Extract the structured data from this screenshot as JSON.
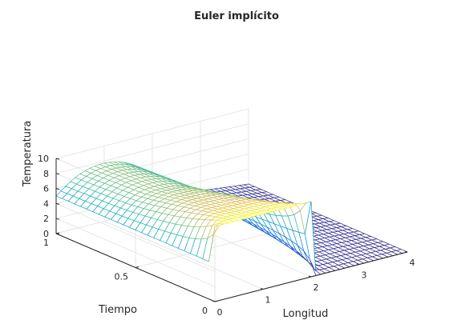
{
  "chart_data": {
    "type": "surface",
    "title": "Euler implícito",
    "xlabel": "Longitud",
    "ylabel": "Tiempo",
    "zlabel": "Temperatura",
    "xlim": [
      0,
      4
    ],
    "ylim": [
      0,
      1
    ],
    "zlim": [
      0,
      10
    ],
    "x_ticks": [
      "0",
      "1",
      "2",
      "3",
      "4"
    ],
    "y_ticks": [
      "0",
      "0.5",
      "1"
    ],
    "z_ticks": [
      "0",
      "2",
      "4",
      "6",
      "8",
      "10"
    ],
    "grid": true,
    "colormap": "parula",
    "initial_condition": {
      "x": [
        0.0,
        0.35,
        0.7,
        1.05,
        1.4,
        1.75,
        2.0,
        2.02,
        2.4,
        2.8,
        3.2,
        3.6,
        4.0
      ],
      "temperature": [
        10,
        10,
        10,
        10,
        10,
        10,
        10,
        0,
        0,
        0,
        0,
        0,
        0
      ]
    },
    "boundary_x0_temperature": 5,
    "boundary_x4_temperature": 0,
    "late_time_profile": {
      "x": [
        0.0,
        0.4,
        0.8,
        1.2,
        1.6,
        2.0,
        2.4,
        2.8,
        3.2,
        3.6,
        4.0
      ],
      "temperature": [
        5.0,
        4.7,
        4.4,
        4.1,
        3.8,
        3.5,
        3.0,
        2.3,
        1.6,
        0.8,
        0.0
      ]
    }
  },
  "colors": {
    "background": "#ffffff",
    "axis": "#262626",
    "grid": "#e6e6e6",
    "colormap_low": "#0c9fd6",
    "colormap_high": "#f9fb0e",
    "colormap_dark": "#352a87"
  }
}
